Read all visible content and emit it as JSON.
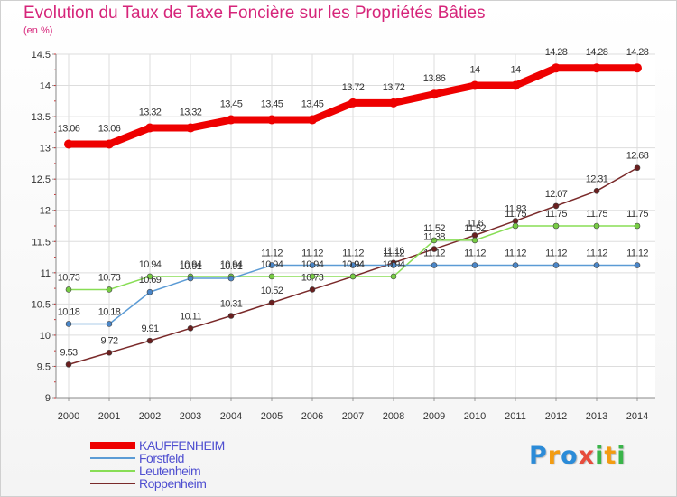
{
  "chart_data": {
    "type": "line",
    "title": "Evolution du Taux de Taxe Foncière sur les Propriétés Bâties",
    "subtitle": "(en %)",
    "x": [
      "2000",
      "2001",
      "2002",
      "2003",
      "2004",
      "2005",
      "2006",
      "2007",
      "2008",
      "2009",
      "2010",
      "2011",
      "2012",
      "2013",
      "2014"
    ],
    "ylim": [
      9,
      14.5
    ],
    "yticks": [
      "9",
      "9.5",
      "10",
      "10.5",
      "11",
      "11.5",
      "12",
      "12.5",
      "13",
      "13.5",
      "14",
      "14.5"
    ],
    "grid": true,
    "series": [
      {
        "name": "KAUFFENHEIM",
        "color": "#ee0000",
        "values": [
          13.06,
          13.06,
          13.32,
          13.32,
          13.45,
          13.45,
          13.45,
          13.72,
          13.72,
          13.86,
          14,
          14,
          14.28,
          14.28,
          14.28
        ],
        "labels": [
          "13.06",
          "13.06",
          "13.32",
          "13.32",
          "13.45",
          "13.45",
          "13.45",
          "13.72",
          "13.72",
          "13.86",
          "14",
          "14",
          "14.28",
          "14.28",
          "14.28"
        ]
      },
      {
        "name": "Forstfeld",
        "color": "#5b9bd5",
        "values": [
          10.18,
          10.18,
          10.69,
          10.91,
          10.91,
          11.12,
          11.12,
          11.12,
          11.12,
          11.12,
          11.12,
          11.12,
          11.12,
          11.12,
          11.12
        ],
        "labels": [
          "10.18",
          "10.18",
          "10.69",
          "10.91",
          "10.91",
          "11.12",
          "11.12",
          "11.12",
          "11.12",
          "11.12",
          "11.12",
          "11.12",
          "11.12",
          "11.12",
          "11.12"
        ]
      },
      {
        "name": "Leutenheim",
        "color": "#88dd55",
        "values": [
          10.73,
          10.73,
          10.94,
          10.94,
          10.94,
          10.94,
          10.94,
          10.94,
          10.94,
          11.52,
          11.52,
          11.75,
          11.75,
          11.75,
          11.75
        ],
        "labels": [
          "10.73",
          "10.73",
          "10.94",
          "10.94",
          "10.94",
          "10.94",
          "10.94",
          "10.94",
          "10.94",
          "11.52",
          "11.52",
          "11.75",
          "11.75",
          "11.75",
          "11.75"
        ]
      },
      {
        "name": "Roppenheim",
        "color": "#7a2a2a",
        "values": [
          9.53,
          9.72,
          9.91,
          10.11,
          10.31,
          10.52,
          10.73,
          10.94,
          11.16,
          11.38,
          11.6,
          11.83,
          12.07,
          12.31,
          12.68
        ],
        "labels": [
          "9.53",
          "9.72",
          "9.91",
          "10.11",
          "10.31",
          "10.52",
          "10.73",
          "10.94",
          "11.16",
          "11.38",
          "11.6",
          "11.83",
          "12.07",
          "12.31",
          "12.68"
        ]
      }
    ],
    "legend_position": "bottom-left"
  },
  "logo": {
    "letters": [
      "P",
      "r",
      "o",
      "x",
      "i",
      "t",
      "i"
    ],
    "colors": [
      "#2b8bd8",
      "#f39c12",
      "#2b8bd8",
      "#e74c3c",
      "#3ab54a",
      "#f39c12",
      "#3ab54a"
    ]
  }
}
